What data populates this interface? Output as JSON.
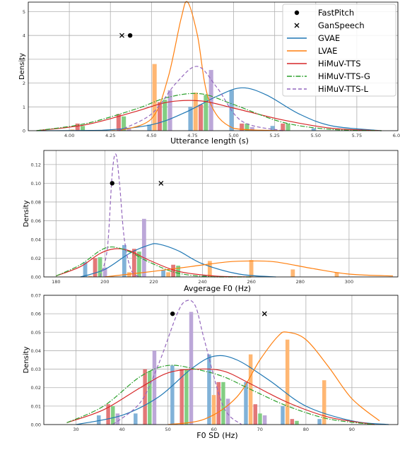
{
  "legend": {
    "entries": [
      {
        "label": "FastPitch",
        "marker": "dot",
        "color": "#000000"
      },
      {
        "label": "GanSpeech",
        "marker": "x",
        "color": "#000000"
      },
      {
        "label": "GVAE",
        "line": "solid",
        "color": "#1f77b4"
      },
      {
        "label": "LVAE",
        "line": "solid",
        "color": "#ff7f0e"
      },
      {
        "label": "HiMuV-TTS",
        "line": "solid",
        "color": "#d62728"
      },
      {
        "label": "HiMuV-TTS-G",
        "line": "dashdot",
        "color": "#2ca02c"
      },
      {
        "label": "HiMuV-TTS-L",
        "line": "dashed",
        "color": "#9467bd"
      }
    ],
    "placement": "top-right"
  },
  "colors": {
    "GVAE": "#1f77b4",
    "LVAE": "#ff7f0e",
    "HiMuV-TTS": "#d62728",
    "HiMuV-TTS-G": "#2ca02c",
    "HiMuV-TTS-L": "#9467bd",
    "GVAE_bar": "#7aaed6",
    "LVAE_bar": "#ffb36b",
    "HiMuV-TTS_bar": "#e27171",
    "HiMuV-TTS-G_bar": "#7ccb7c",
    "HiMuV-TTS-L_bar": "#b8a2d6"
  },
  "chart_data": [
    {
      "type": "histogram+kde",
      "xlabel": "Utterance length (s)",
      "ylabel": "Density",
      "xlim": [
        3.75,
        6.0
      ],
      "ylim": [
        0,
        5.4
      ],
      "xticks": [
        "4.00",
        "4.25",
        "4.50",
        "4.75",
        "5.00",
        "5.25",
        "5.50",
        "5.75",
        "6.00"
      ],
      "yticks": [
        "0",
        "1",
        "2",
        "3",
        "4",
        "5"
      ],
      "grid": true,
      "markers": [
        {
          "name": "FastPitch",
          "x": 4.37,
          "y": 4.0
        },
        {
          "name": "GanSpeech",
          "x": 4.32,
          "y": 4.0
        }
      ],
      "bars": {
        "centers": [
          4.05,
          4.3,
          4.55,
          4.8,
          5.05,
          5.3,
          5.55
        ],
        "series": [
          {
            "name": "GVAE",
            "values": [
              0.0,
              0.0,
              0.25,
              1.0,
              1.7,
              0.2,
              0.1
            ]
          },
          {
            "name": "LVAE",
            "values": [
              0.05,
              0.05,
              2.8,
              1.6,
              0.0,
              0.0,
              0.0
            ]
          },
          {
            "name": "HiMuV-TTS",
            "values": [
              0.3,
              0.7,
              1.2,
              1.1,
              0.3,
              0.3,
              0.0
            ]
          },
          {
            "name": "HiMuV-TTS-G",
            "values": [
              0.2,
              0.6,
              1.3,
              1.5,
              0.3,
              0.3,
              0.0
            ]
          },
          {
            "name": "HiMuV-TTS-L",
            "values": [
              0.0,
              0.1,
              1.7,
              2.55,
              0.15,
              0.0,
              0.0
            ]
          }
        ]
      },
      "curves": [
        {
          "name": "GVAE",
          "x": [
            3.8,
            4.2,
            4.5,
            4.7,
            4.9,
            5.05,
            5.2,
            5.4,
            5.6,
            5.9
          ],
          "y": [
            0.0,
            0.02,
            0.25,
            0.75,
            1.45,
            1.8,
            1.5,
            0.7,
            0.2,
            0.0
          ]
        },
        {
          "name": "LVAE",
          "x": [
            4.3,
            4.5,
            4.6,
            4.68,
            4.72,
            4.78,
            4.85,
            5.0,
            5.3
          ],
          "y": [
            0.0,
            0.5,
            2.2,
            4.7,
            5.4,
            4.0,
            1.3,
            0.1,
            0.0
          ]
        },
        {
          "name": "HiMuV-TTS",
          "x": [
            3.8,
            4.1,
            4.4,
            4.6,
            4.8,
            5.0,
            5.3,
            5.6,
            5.9
          ],
          "y": [
            0.0,
            0.25,
            0.8,
            1.2,
            1.25,
            0.95,
            0.45,
            0.1,
            0.0
          ]
        },
        {
          "name": "HiMuV-TTS-G",
          "x": [
            3.8,
            4.1,
            4.4,
            4.6,
            4.8,
            5.0,
            5.3,
            5.6,
            5.9
          ],
          "y": [
            0.0,
            0.3,
            0.9,
            1.4,
            1.55,
            1.1,
            0.35,
            0.05,
            0.0
          ]
        },
        {
          "name": "HiMuV-TTS-L",
          "x": [
            4.3,
            4.5,
            4.65,
            4.78,
            4.9,
            5.05,
            5.3
          ],
          "y": [
            0.0,
            0.7,
            2.0,
            2.7,
            1.8,
            0.4,
            0.0
          ]
        }
      ]
    },
    {
      "type": "histogram+kde",
      "xlabel": "Avgerage F0 (Hz)",
      "ylabel": "Density",
      "xlim": [
        175,
        320
      ],
      "ylim": [
        0,
        0.135
      ],
      "xticks": [
        "180",
        "200",
        "220",
        "240",
        "260",
        "280",
        "300"
      ],
      "yticks": [
        "0.00",
        "0.02",
        "0.04",
        "0.06",
        "0.08",
        "0.10",
        "0.12"
      ],
      "grid": true,
      "markers": [
        {
          "name": "FastPitch",
          "x": 203.0,
          "y": 0.1
        },
        {
          "name": "GanSpeech",
          "x": 223.0,
          "y": 0.1
        }
      ],
      "bars": {
        "centers": [
          196,
          212,
          228,
          245,
          262,
          279,
          297
        ],
        "series": [
          {
            "name": "GVAE",
            "values": [
              0.016,
              0.034,
              0.007,
              0.002,
              0.0,
              0.0,
              0.0
            ]
          },
          {
            "name": "LVAE",
            "values": [
              0.001,
              0.005,
              0.005,
              0.017,
              0.018,
              0.008,
              0.005
            ]
          },
          {
            "name": "HiMuV-TTS",
            "values": [
              0.02,
              0.03,
              0.013,
              0.0,
              0.0,
              0.0,
              0.0
            ]
          },
          {
            "name": "HiMuV-TTS-G",
            "values": [
              0.021,
              0.027,
              0.012,
              0.0,
              0.0,
              0.0,
              0.0
            ]
          },
          {
            "name": "HiMuV-TTS-L",
            "values": [
              0.01,
              0.062,
              0.0,
              0.0,
              0.0,
              0.0,
              0.0
            ]
          }
        ]
      },
      "curves": [
        {
          "name": "GVAE",
          "x": [
            190,
            200,
            210,
            218,
            222,
            230,
            240,
            255,
            270
          ],
          "y": [
            0.0,
            0.008,
            0.025,
            0.034,
            0.035,
            0.028,
            0.014,
            0.003,
            0.0
          ]
        },
        {
          "name": "LVAE",
          "x": [
            200,
            220,
            235,
            250,
            260,
            270,
            285,
            300,
            318
          ],
          "y": [
            0.0,
            0.006,
            0.011,
            0.016,
            0.017,
            0.016,
            0.009,
            0.003,
            0.001
          ]
        },
        {
          "name": "HiMuV-TTS",
          "x": [
            180,
            190,
            198,
            204,
            210,
            218,
            230,
            245,
            260
          ],
          "y": [
            0.001,
            0.011,
            0.025,
            0.03,
            0.028,
            0.018,
            0.006,
            0.001,
            0.0
          ]
        },
        {
          "name": "HiMuV-TTS-G",
          "x": [
            180,
            190,
            198,
            203,
            210,
            218,
            230,
            245,
            260
          ],
          "y": [
            0.001,
            0.013,
            0.028,
            0.032,
            0.027,
            0.016,
            0.004,
            0.0,
            0.0
          ]
        },
        {
          "name": "HiMuV-TTS-L",
          "x": [
            198,
            201,
            203,
            204.5,
            206,
            208,
            211,
            215
          ],
          "y": [
            0.0,
            0.03,
            0.11,
            0.131,
            0.1,
            0.04,
            0.006,
            0.0
          ]
        }
      ]
    },
    {
      "type": "histogram+kde",
      "xlabel": "F0 SD (Hz)",
      "ylabel": "Density",
      "xlim": [
        23,
        100
      ],
      "ylim": [
        0,
        0.07
      ],
      "xticks": [
        "30",
        "40",
        "50",
        "60",
        "70",
        "80",
        "90"
      ],
      "yticks": [
        "0.00",
        "0.01",
        "0.02",
        "0.03",
        "0.04",
        "0.05",
        "0.06",
        "0.07"
      ],
      "grid": true,
      "markers": [
        {
          "name": "FastPitch",
          "x": 51.0,
          "y": 0.06
        },
        {
          "name": "GanSpeech",
          "x": 71.0,
          "y": 0.06
        }
      ],
      "bars": {
        "centers": [
          37,
          45,
          53,
          61,
          69,
          77,
          85
        ],
        "series": [
          {
            "name": "GVAE",
            "values": [
              0.005,
              0.006,
              0.032,
              0.038,
              0.023,
              0.01,
              0.003
            ]
          },
          {
            "name": "LVAE",
            "values": [
              0.0,
              0.0,
              0.0,
              0.016,
              0.038,
              0.046,
              0.024
            ]
          },
          {
            "name": "HiMuV-TTS",
            "values": [
              0.011,
              0.03,
              0.03,
              0.023,
              0.011,
              0.003,
              0.0
            ]
          },
          {
            "name": "HiMuV-TTS-G",
            "values": [
              0.01,
              0.029,
              0.03,
              0.023,
              0.006,
              0.002,
              0.0
            ]
          },
          {
            "name": "HiMuV-TTS-L",
            "values": [
              0.006,
              0.04,
              0.061,
              0.014,
              0.005,
              0.0,
              0.0
            ]
          }
        ]
      },
      "curves": [
        {
          "name": "GVAE",
          "x": [
            30,
            40,
            48,
            55,
            60,
            65,
            72,
            80,
            90,
            98
          ],
          "y": [
            0.0,
            0.005,
            0.015,
            0.03,
            0.037,
            0.035,
            0.024,
            0.01,
            0.002,
            0.0
          ]
        },
        {
          "name": "LVAE",
          "x": [
            50,
            58,
            65,
            70,
            74,
            76,
            80,
            85,
            90,
            96
          ],
          "y": [
            0.0,
            0.003,
            0.015,
            0.035,
            0.048,
            0.05,
            0.046,
            0.031,
            0.014,
            0.002
          ]
        },
        {
          "name": "HiMuV-TTS",
          "x": [
            28,
            36,
            44,
            50,
            56,
            62,
            68,
            76,
            85,
            95
          ],
          "y": [
            0.001,
            0.008,
            0.02,
            0.028,
            0.03,
            0.029,
            0.022,
            0.012,
            0.004,
            0.0
          ]
        },
        {
          "name": "HiMuV-TTS-G",
          "x": [
            28,
            36,
            44,
            50,
            56,
            62,
            68,
            76,
            85,
            95
          ],
          "y": [
            0.001,
            0.01,
            0.026,
            0.032,
            0.03,
            0.026,
            0.019,
            0.01,
            0.003,
            0.0
          ]
        },
        {
          "name": "HiMuV-TTS-L",
          "x": [
            38,
            44,
            48,
            52,
            54,
            56,
            58,
            62,
            66
          ],
          "y": [
            0.0,
            0.012,
            0.033,
            0.06,
            0.067,
            0.064,
            0.045,
            0.01,
            0.0
          ]
        }
      ]
    }
  ]
}
